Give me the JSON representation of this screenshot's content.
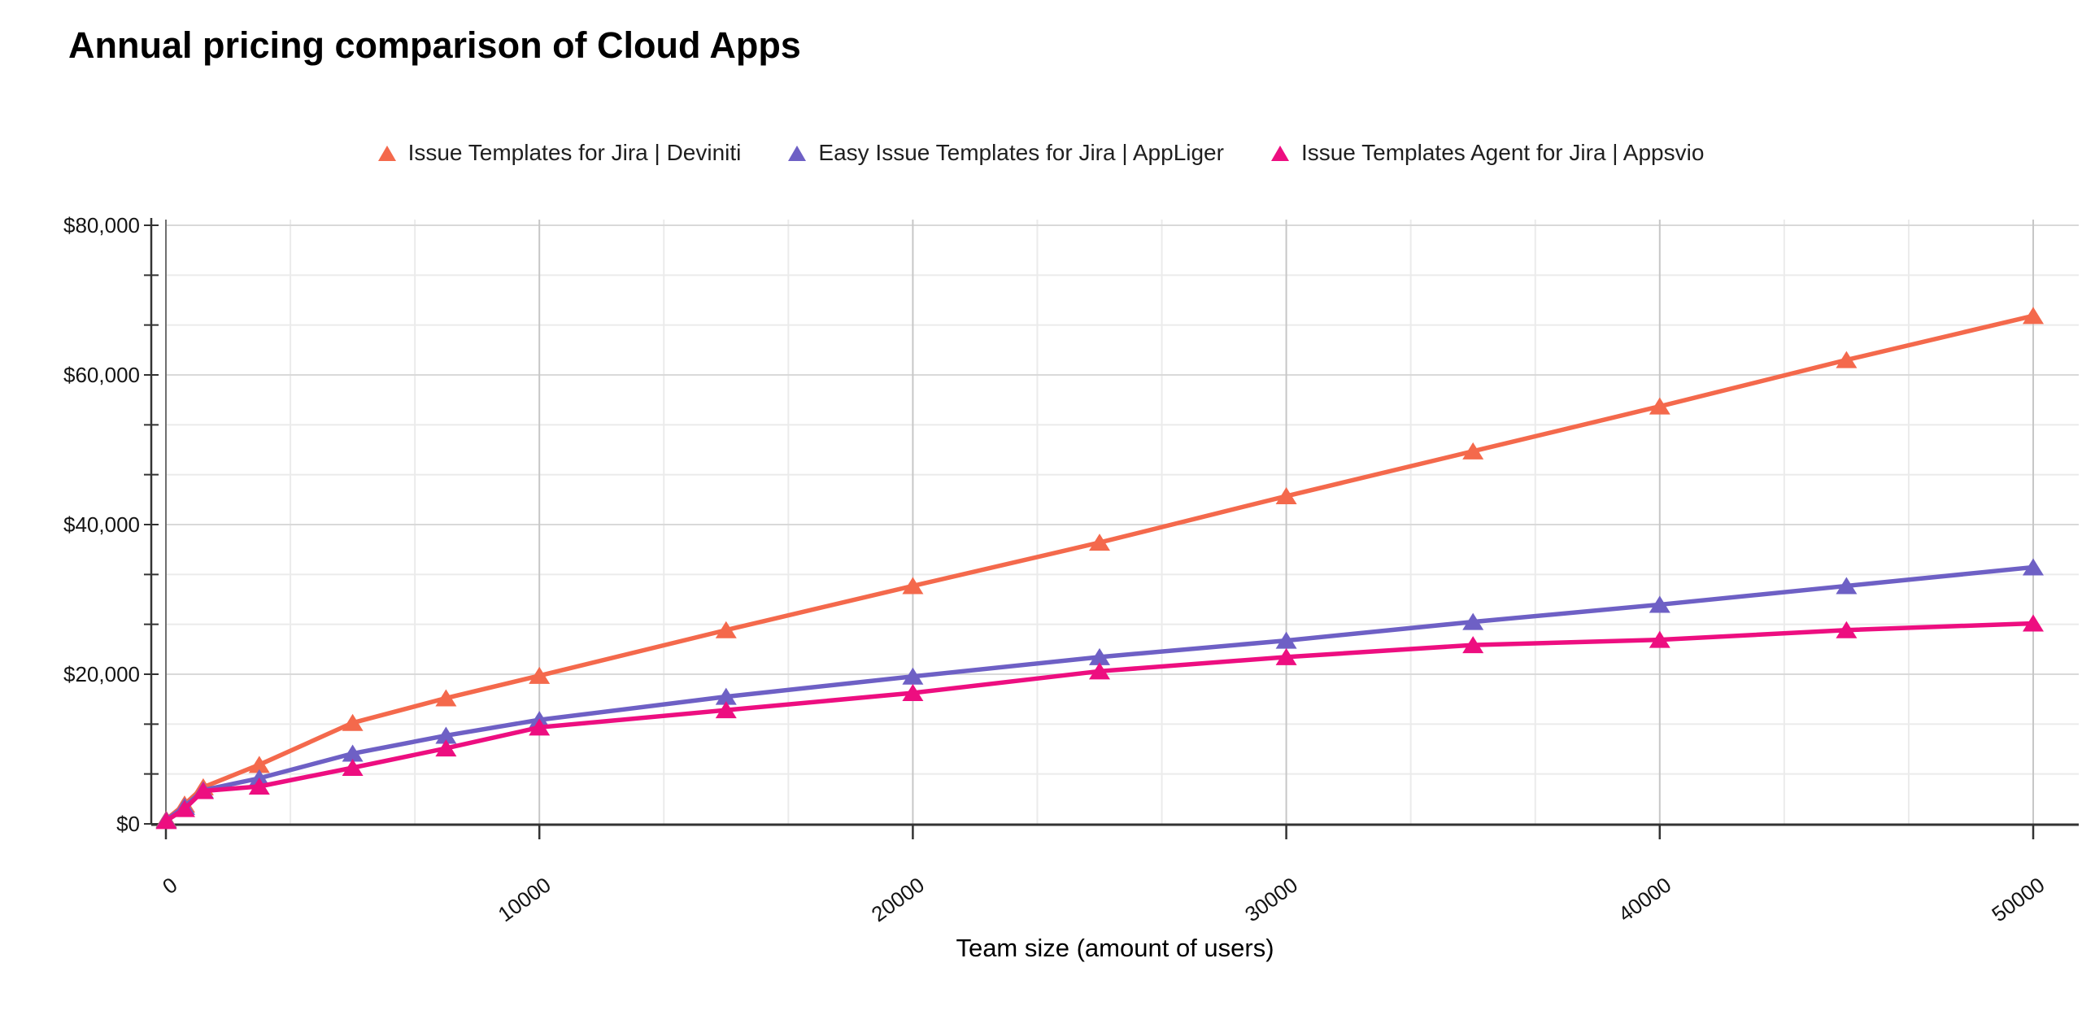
{
  "title": "Annual pricing comparison of Cloud Apps",
  "legend": [
    {
      "label": "Issue Templates for Jira | Deviniti",
      "color": "#F4694C"
    },
    {
      "label": "Easy Issue Templates for Jira | AppLiger",
      "color": "#6E60C5"
    },
    {
      "label": "Issue Templates Agent for Jira | Appsvio",
      "color": "#ED0E80"
    }
  ],
  "x_axis": {
    "title": "Team size (amount of users)",
    "tick_values": [
      0,
      10000,
      20000,
      30000,
      40000,
      50000
    ],
    "tick_labels": [
      "0",
      "10000",
      "20000",
      "30000",
      "40000",
      "50000"
    ]
  },
  "y_axis": {
    "tick_values": [
      0,
      20000,
      40000,
      60000,
      80000
    ],
    "tick_labels": [
      "$0",
      "$20,000",
      "$40,000",
      "$60,000",
      "$80,000"
    ]
  },
  "chart_data": {
    "type": "line",
    "title": "Annual pricing comparison of Cloud Apps",
    "xlabel": "Team size (amount of users)",
    "ylabel": "",
    "xlim": [
      0,
      50000
    ],
    "ylim": [
      0,
      80000
    ],
    "grid": true,
    "legend_position": "top",
    "marker": "triangle-up",
    "x": [
      10,
      500,
      1000,
      2500,
      5000,
      7500,
      10000,
      15000,
      20000,
      25000,
      30000,
      35000,
      40000,
      45000,
      50000
    ],
    "series": [
      {
        "name": "Issue Templates for Jira | Deviniti",
        "color": "#F4694C",
        "values": [
          600,
          2600,
          4900,
          7900,
          13500,
          16800,
          19800,
          25900,
          31800,
          37600,
          43800,
          49800,
          55800,
          62000,
          67900
        ]
      },
      {
        "name": "Easy Issue Templates for Jira | AppLiger",
        "color": "#6E60C5",
        "values": [
          500,
          2300,
          4500,
          6100,
          9400,
          11800,
          13900,
          17000,
          19700,
          22300,
          24500,
          27000,
          29300,
          31800,
          34300
        ]
      },
      {
        "name": "Issue Templates Agent for Jira | Appsvio",
        "color": "#ED0E80",
        "values": [
          400,
          2000,
          4400,
          5000,
          7500,
          10100,
          12900,
          15200,
          17500,
          20400,
          22300,
          23900,
          24600,
          25900,
          26800
        ]
      }
    ]
  }
}
